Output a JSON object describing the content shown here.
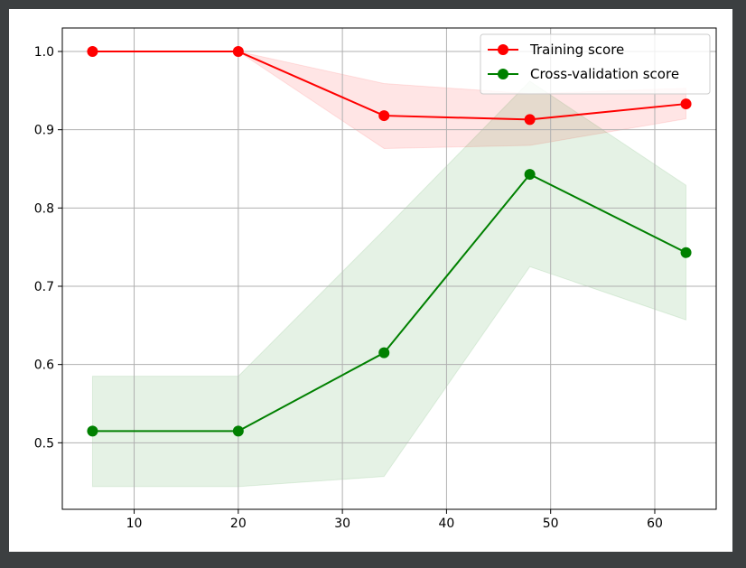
{
  "colors": {
    "window_background": "#3c3f41",
    "figure_background": "#ffffff",
    "grid": "#b0b0b0",
    "training": "#ff0000",
    "cross_validation": "#008000"
  },
  "chart_data": {
    "type": "line",
    "title": "",
    "xlabel": "",
    "ylabel": "",
    "xlim": [
      3.1,
      65.9
    ],
    "ylim": [
      0.415,
      1.03
    ],
    "grid": true,
    "legend_position": "upper-right",
    "x_ticks": [
      10,
      20,
      30,
      40,
      50,
      60
    ],
    "y_ticks": [
      0.5,
      0.6,
      0.7,
      0.8,
      0.9,
      1.0
    ],
    "x_tick_labels": [
      "10",
      "20",
      "30",
      "40",
      "50",
      "60"
    ],
    "y_tick_labels": [
      "0.5",
      "0.6",
      "0.7",
      "0.8",
      "0.9",
      "1.0"
    ],
    "x": [
      6,
      20,
      34,
      48,
      63
    ],
    "series": [
      {
        "name": "Training score",
        "color": "#ff0000",
        "values": [
          1.0,
          1.0,
          0.918,
          0.913,
          0.933
        ],
        "band_lower": [
          1.0,
          1.0,
          0.876,
          0.88,
          0.914
        ],
        "band_upper": [
          1.0,
          1.0,
          0.959,
          0.946,
          0.953
        ]
      },
      {
        "name": "Cross-validation score",
        "color": "#008000",
        "values": [
          0.515,
          0.515,
          0.615,
          0.843,
          0.743
        ],
        "band_lower": [
          0.444,
          0.444,
          0.457,
          0.725,
          0.657
        ],
        "band_upper": [
          0.585,
          0.585,
          0.772,
          0.962,
          0.829
        ]
      }
    ]
  }
}
